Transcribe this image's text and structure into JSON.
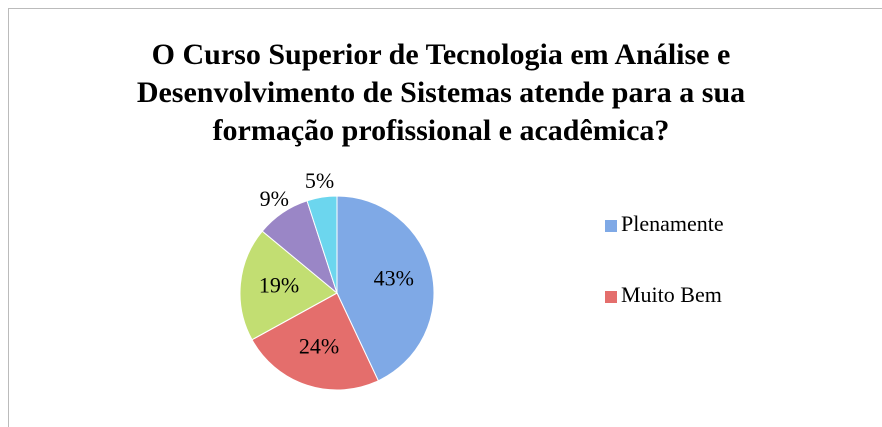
{
  "chart_data": {
    "type": "pie",
    "title": "O Curso Superior de Tecnologia em Análise e Desenvolvimento de Sistemas atende para a sua formação profissional e acadêmica?",
    "categories": [
      "Plenamente",
      "Muito Bem",
      null,
      null,
      null
    ],
    "values": [
      43,
      24,
      19,
      9,
      5
    ],
    "value_labels": [
      "43%",
      "24%",
      "19%",
      "9%",
      "5%"
    ],
    "colors": [
      "#7fa9e6",
      "#e46e6c",
      "#c2de72",
      "#9a86c6",
      "#6cd6ee"
    ],
    "legend": "right"
  }
}
